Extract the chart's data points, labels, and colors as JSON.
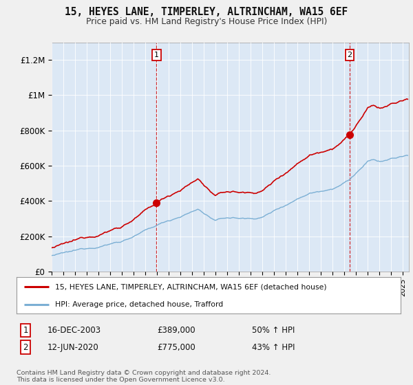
{
  "title": "15, HEYES LANE, TIMPERLEY, ALTRINCHAM, WA15 6EF",
  "subtitle": "Price paid vs. HM Land Registry's House Price Index (HPI)",
  "sale1_label": "16-DEC-2003",
  "sale1_price": 389000,
  "sale1_year": 2003.96,
  "sale1_hpi_pct": "50% ↑ HPI",
  "sale2_label": "12-JUN-2020",
  "sale2_price": 775000,
  "sale2_year": 2020.45,
  "sale2_hpi_pct": "43% ↑ HPI",
  "legend_line1": "15, HEYES LANE, TIMPERLEY, ALTRINCHAM, WA15 6EF (detached house)",
  "legend_line2": "HPI: Average price, detached house, Trafford",
  "footnote": "Contains HM Land Registry data © Crown copyright and database right 2024.\nThis data is licensed under the Open Government Licence v3.0.",
  "line_color_price": "#cc0000",
  "line_color_hpi": "#7bafd4",
  "background_color": "#f0f0f0",
  "plot_bg_color": "#dce8f5",
  "ylim": [
    0,
    1300000
  ],
  "yticks": [
    0,
    200000,
    400000,
    600000,
    800000,
    1000000,
    1200000
  ],
  "ytick_labels": [
    "£0",
    "£200K",
    "£400K",
    "£600K",
    "£800K",
    "£1M",
    "£1.2M"
  ],
  "x_start_year": 1995,
  "x_end_year": 2025
}
